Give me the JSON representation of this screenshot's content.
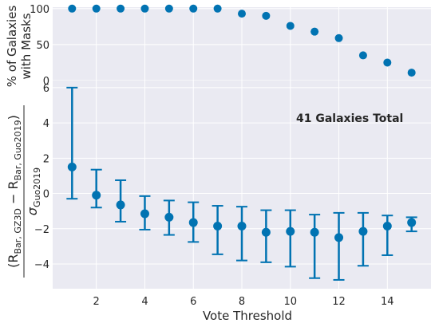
{
  "colors": {
    "marker": "#0173b2",
    "panel_bg": "#eaeaf2",
    "grid": "#ffffff",
    "text": "#262626"
  },
  "chart_data": [
    {
      "type": "scatter",
      "panel": "top",
      "title": "",
      "ylabel_lines": [
        "% of Galaxies",
        "with Masks"
      ],
      "xlim": [
        0.2,
        15.8
      ],
      "ylim": [
        0,
        102
      ],
      "yticks": [
        0,
        50,
        100
      ],
      "grid": true,
      "x": [
        1,
        2,
        3,
        4,
        5,
        6,
        7,
        8,
        9,
        10,
        11,
        12,
        13,
        14,
        15
      ],
      "y": [
        100,
        100,
        100,
        100,
        100,
        100,
        100,
        93,
        90,
        76,
        68,
        59,
        35,
        25,
        11
      ]
    },
    {
      "type": "scatter",
      "panel": "bottom",
      "title": "",
      "xlabel": "Vote Threshold",
      "ylabel": "(R_Bar, GZ3D − R_Bar, Guo2019) / σ_Guo2019",
      "ylabel_parts": {
        "lhs": "(R",
        "sub1": "Bar, GZ3D",
        "minus": " − R",
        "sub2": "Bar, Guo2019",
        "rp": ")",
        "den": "σ",
        "sub3": "Guo2019"
      },
      "annotation": "41 Galaxies Total",
      "xlim": [
        0.2,
        15.8
      ],
      "ylim": [
        -5.4,
        6.4
      ],
      "xticks": [
        2,
        4,
        6,
        8,
        10,
        12,
        14
      ],
      "yticks": [
        -4,
        -2,
        0,
        2,
        4,
        6
      ],
      "grid": true,
      "x": [
        1,
        2,
        3,
        4,
        5,
        6,
        7,
        8,
        9,
        10,
        11,
        12,
        13,
        14,
        15
      ],
      "y": [
        1.5,
        -0.1,
        -0.65,
        -1.15,
        -1.35,
        -1.65,
        -1.85,
        -1.85,
        -2.2,
        -2.15,
        -2.2,
        -2.5,
        -2.15,
        -1.85,
        -1.65
      ],
      "err_low": [
        -0.3,
        -0.8,
        -1.6,
        -2.05,
        -2.35,
        -2.75,
        -3.45,
        -3.8,
        -3.9,
        -4.15,
        -4.8,
        -4.9,
        -4.1,
        -3.5,
        -2.15
      ],
      "err_high": [
        6.0,
        1.35,
        0.75,
        -0.15,
        -0.4,
        -0.5,
        -0.7,
        -0.75,
        -0.95,
        -0.95,
        -1.2,
        -1.1,
        -1.1,
        -1.25,
        -1.35
      ]
    }
  ]
}
